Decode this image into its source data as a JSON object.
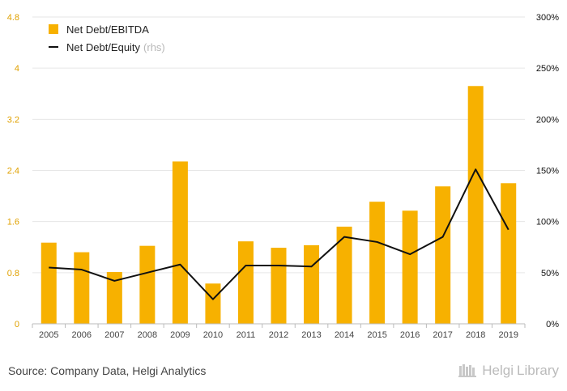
{
  "chart_data": {
    "type": "bar",
    "categories": [
      "2005",
      "2006",
      "2007",
      "2008",
      "2009",
      "2010",
      "2011",
      "2012",
      "2013",
      "2014",
      "2015",
      "2016",
      "2017",
      "2018",
      "2019"
    ],
    "series": [
      {
        "name": "Net Debt/EBITDA",
        "type": "bar",
        "axis": "left",
        "values": [
          1.27,
          1.12,
          0.81,
          1.22,
          2.54,
          0.63,
          1.29,
          1.19,
          1.23,
          1.52,
          1.91,
          1.77,
          2.15,
          3.72,
          2.2
        ]
      },
      {
        "name": "Net Debt/Equity",
        "name_suffix": "(rhs)",
        "type": "line",
        "axis": "right",
        "values": [
          55,
          53,
          42,
          50,
          58,
          24,
          57,
          57,
          56,
          85,
          80,
          68,
          85,
          151,
          92
        ]
      }
    ],
    "y_left": {
      "ticks": [
        "0",
        "0.8",
        "1.6",
        "2.4",
        "3.2",
        "4",
        "4.8"
      ],
      "ylim": [
        0,
        4.8
      ]
    },
    "y_right": {
      "ticks": [
        "0%",
        "50%",
        "100%",
        "150%",
        "200%",
        "250%",
        "300%"
      ],
      "ylim": [
        0,
        300
      ]
    },
    "grid": true,
    "legend": "top-left"
  },
  "colors": {
    "bar": "#f7b100",
    "line": "#111111",
    "left_tick": "#e0a100",
    "right_tick": "#111111",
    "grid": "#e6e6e6",
    "axis": "#bbbbbb"
  },
  "footer": {
    "source": "Source: Company Data, Helgi Analytics",
    "brand_main": "Helgi",
    "brand_sub": "Library",
    "brand_icon": "library-shelf-icon"
  }
}
